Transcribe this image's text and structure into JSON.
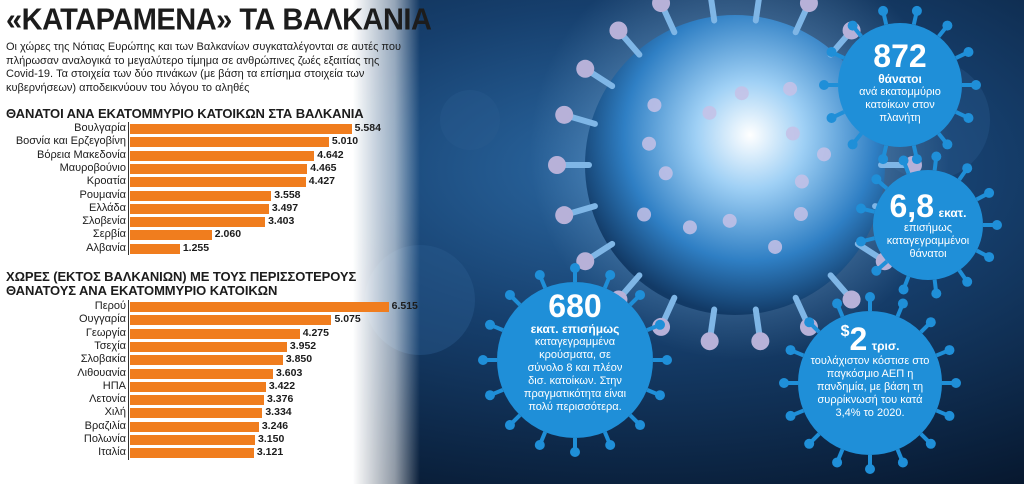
{
  "headline": "«ΚΑΤΑΡΑΜΕΝΑ» ΤΑ ΒΑΛΚΑΝΙΑ",
  "intro": "Οι χώρες της Νότιας Ευρώπης και των Βαλκανίων συγκαταλέγονται σε αυτές που πλήρωσαν αναλογικά το μεγαλύτερο τίμημα σε ανθρώπινες ζωές εξαιτίας της Covid-19. Τα στοιχεία των δύο πινάκων (με βάση τα επίσημα στοιχεία των κυβερνήσεων) αποδεικνύουν του λόγου το αληθές",
  "colors": {
    "bar": "#f07d1e",
    "bubble": "#1f8fd8",
    "background": "#0d2a4d"
  },
  "chart_data": [
    {
      "type": "bar",
      "orientation": "horizontal",
      "title": "ΘΑΝΑΤΟΙ ΑΝΑ ΕΚΑΤΟΜΜΥΡΙΟ ΚΑΤΟΙΚΩΝ ΣΤΑ ΒΑΛΚΑΝΙΑ",
      "categories": [
        "Βουλγαρία",
        "Βοσνία και Ερζεγοβίνη",
        "Βόρεια Μακεδονία",
        "Μαυροβούνιο",
        "Κροατία",
        "Ρουμανία",
        "Ελλάδα",
        "Σλοβενία",
        "Σερβία",
        "Αλβανία"
      ],
      "values": [
        5584,
        5010,
        4642,
        4465,
        4427,
        3558,
        3497,
        3403,
        2060,
        1255
      ],
      "labels": [
        "5.584",
        "5.010",
        "4.642",
        "4.465",
        "4.427",
        "3.558",
        "3.497",
        "3.403",
        "2.060",
        "1.255"
      ],
      "xlim": [
        0,
        6600
      ]
    },
    {
      "type": "bar",
      "orientation": "horizontal",
      "title_line1": "ΧΩΡΕΣ (ΕΚΤΟΣ ΒΑΛΚΑΝΙΩΝ) ΜΕ ΤΟΥΣ ΠΕΡΙΣΣΟΤΕΡΟΥΣ",
      "title_line2": "ΘΑΝΑΤΟΥΣ ΑΝΑ ΕΚΑΤΟΜΜΥΡΙΟ ΚΑΤΟΙΚΩΝ",
      "categories": [
        "Περού",
        "Ουγγαρία",
        "Γεωργία",
        "Τσεχία",
        "Σλοβακία",
        "Λιθουανία",
        "ΗΠΑ",
        "Λετονία",
        "Χιλή",
        "Βραζιλία",
        "Πολωνία",
        "Ιταλία"
      ],
      "values": [
        6515,
        5075,
        4275,
        3952,
        3850,
        3603,
        3422,
        3376,
        3334,
        3246,
        3150,
        3121
      ],
      "labels": [
        "6.515",
        "5.075",
        "4.275",
        "3.952",
        "3.850",
        "3.603",
        "3.422",
        "3.376",
        "3.334",
        "3.246",
        "3.150",
        "3.121"
      ],
      "xlim": [
        0,
        6600
      ]
    }
  ],
  "bubbles": {
    "b1": {
      "number": "872",
      "unit": "θάνατοι",
      "text": "ανά εκατομμύριο κατοίκων στον πλανήτη"
    },
    "b2": {
      "number": "6,8",
      "unit": "εκατ.",
      "text": "επισήμως καταγεγραμμένοι θάνατοι"
    },
    "b3": {
      "number": "680",
      "unit": "εκατ. επισήμως",
      "text": "καταγεγραμμένα κρούσματα, σε σύνολο 8 και πλέον δισ. κατοίκων. Στην πραγματικότητα είναι πολύ περισσότερα."
    },
    "b4": {
      "currency": "$",
      "number": "2",
      "unit": "τρισ.",
      "text": "τουλάχιστον κόστισε στο παγκόσμιο ΑΕΠ η πανδημία, με βάση τη συρρίκνωσή του κατά 3,4% το 2020."
    }
  }
}
